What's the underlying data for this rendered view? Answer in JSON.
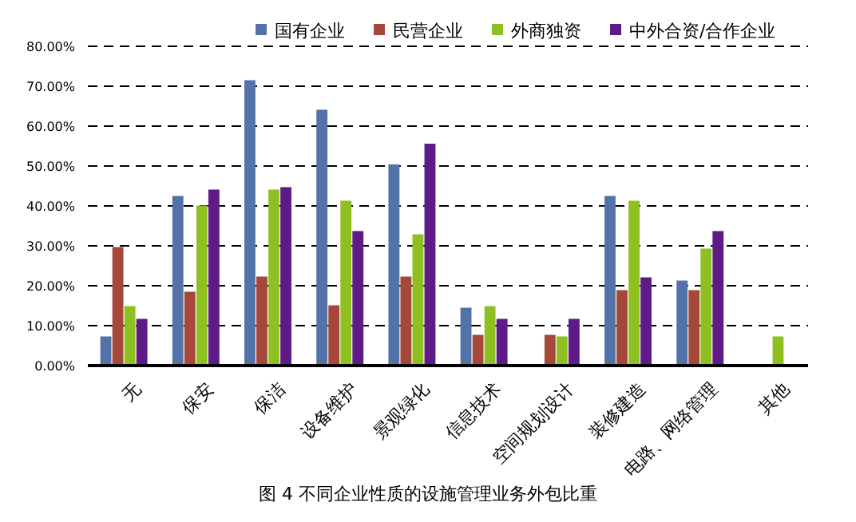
{
  "chart_data": {
    "type": "bar",
    "title": "图 4   不同企业性质的设施管理业务外包比重",
    "categories": [
      "无",
      "保安",
      "保洁",
      "设备维护",
      "景观绿化",
      "信息技术",
      "空间规划设计",
      "装修建造",
      "电路、网络管理",
      "其他"
    ],
    "series": [
      {
        "name": "国有企业",
        "color": "#5373a8",
        "values": [
          7.3,
          42.5,
          71.5,
          64.1,
          50.4,
          14.5,
          0,
          42.5,
          21.3,
          0
        ]
      },
      {
        "name": "民营企业",
        "color": "#a5483a",
        "values": [
          29.7,
          18.5,
          22.3,
          15.1,
          22.3,
          7.7,
          7.7,
          18.9,
          18.9,
          0
        ]
      },
      {
        "name": "外商独资",
        "color": "#8dc020",
        "values": [
          14.9,
          40.1,
          44.1,
          41.3,
          32.9,
          14.9,
          7.3,
          41.3,
          29.3,
          7.3
        ]
      },
      {
        "name": "中外合资/合作企业",
        "color": "#5e1a86",
        "values": [
          11.7,
          44.1,
          44.7,
          33.7,
          55.6,
          11.7,
          11.7,
          22.1,
          33.7,
          0
        ]
      }
    ],
    "ylim": [
      0,
      80
    ],
    "yticks": [
      {
        "value": 0,
        "label": "0.00%"
      },
      {
        "value": 10,
        "label": "10.00%"
      },
      {
        "value": 20,
        "label": "20.00%"
      },
      {
        "value": 30,
        "label": "30.00%"
      },
      {
        "value": 40,
        "label": "40.00%"
      },
      {
        "value": 50,
        "label": "50.00%"
      },
      {
        "value": 60,
        "label": "60.00%"
      },
      {
        "value": 70,
        "label": "70.00%"
      },
      {
        "value": 80,
        "label": "80.00%"
      }
    ],
    "grid": "y",
    "legend": "top right"
  }
}
